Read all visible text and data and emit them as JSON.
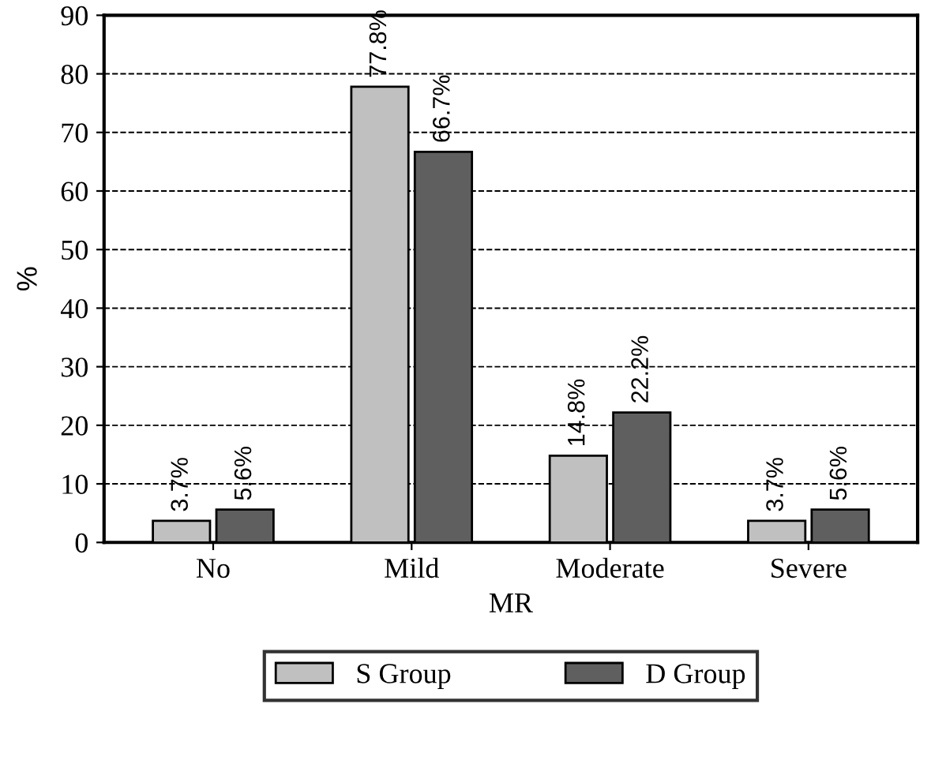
{
  "chart_data": {
    "type": "bar",
    "xlabel": "MR",
    "ylabel": "%",
    "categories": [
      "No",
      "Mild",
      "Moderate",
      "Severe"
    ],
    "series": [
      {
        "name": "S Group",
        "color": "#c0c0c0",
        "values": [
          3.7,
          77.8,
          14.8,
          3.7
        ],
        "value_labels": [
          "3.7%",
          "77.8%",
          "14.8%",
          "3.7%"
        ]
      },
      {
        "name": "D Group",
        "color": "#5f5f5f",
        "values": [
          5.6,
          66.7,
          22.2,
          5.6
        ],
        "value_labels": [
          "5.6%",
          "66.7%",
          "22.2%",
          "5.6%"
        ]
      }
    ],
    "ylim": [
      0,
      90
    ],
    "yticks": [
      0,
      10,
      20,
      30,
      40,
      50,
      60,
      70,
      80,
      90
    ],
    "grid": "y",
    "legend": "bottom"
  }
}
